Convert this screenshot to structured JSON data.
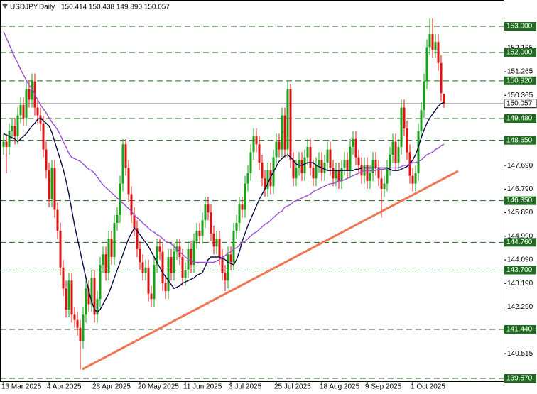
{
  "chart_data": {
    "type": "candlestick",
    "title": "USDJPY,Daily",
    "subtitle": "150.414 150.438 149.890 150.057",
    "xlim": [
      -1.25,
      176
    ],
    "ylim": [
      139.462,
      154.002
    ],
    "xticks": [
      {
        "value": 0,
        "label": "13 Mar 2025"
      },
      {
        "value": 16,
        "label": "4 Apr 2025"
      },
      {
        "value": 32,
        "label": "28 Apr 2025"
      },
      {
        "value": 48,
        "label": "20 May 2025"
      },
      {
        "value": 64,
        "label": "11 Jun 2025"
      },
      {
        "value": 80,
        "label": "3 Jul 2025"
      },
      {
        "value": 96,
        "label": "25 Jul 2025"
      },
      {
        "value": 112,
        "label": "18 Aug 2025"
      },
      {
        "value": 128,
        "label": "9 Sep 2025"
      },
      {
        "value": 144,
        "label": "1 Oct 2025"
      }
    ],
    "yticks": [
      152.165,
      151.265,
      150.365,
      {
        "value": 147.69,
        "label": "147.690"
      },
      {
        "value": 146.79,
        "label": "146.790"
      },
      {
        "value": 145.89,
        "label": "145.890"
      },
      {
        "value": 144.99,
        "label": "144.990"
      },
      {
        "value": 144.09,
        "label": "144.090"
      },
      {
        "value": 143.19,
        "label": "143.190"
      },
      {
        "value": 142.29,
        "label": "142.290"
      },
      140.515
    ],
    "levels": [
      {
        "value": 153,
        "label": "153.000"
      },
      {
        "value": 152,
        "label": "152.000"
      },
      {
        "value": 150.92,
        "label": "150.920"
      },
      {
        "value": 149.48,
        "label": "149.480"
      },
      {
        "value": 148.65,
        "label": "148.650"
      },
      {
        "value": 146.35,
        "label": "146.350"
      },
      {
        "value": 144.76,
        "label": "144.760"
      },
      {
        "value": 143.7,
        "label": "143.700"
      },
      {
        "value": 141.44,
        "label": "141.440"
      },
      {
        "value": 139.57,
        "label": "139.570"
      }
    ],
    "level_color": "#1f6b1f",
    "up_color": "#16a316",
    "down_color": "#e01010",
    "candles": {
      "open": [
        148.4,
        148.6,
        148.4,
        149,
        149.2,
        148.8,
        149.6,
        150,
        149.5,
        150.6,
        150.2,
        150.9,
        149.9,
        149.6,
        149.3,
        148.3,
        147.5,
        146.4,
        147.6,
        146,
        145.2,
        143.8,
        143,
        142.2,
        143.3,
        142,
        141.8,
        141.5,
        141,
        142,
        143,
        142.4,
        143.4,
        142,
        142.6,
        143.9,
        144.3,
        143.6,
        144.9,
        144.2,
        145.5,
        145.8,
        147,
        148.5,
        147.6,
        146.6,
        145.8,
        145.3,
        144.5,
        144,
        143.6,
        143.8,
        142.8,
        142.6,
        143.9,
        144.6,
        144.4,
        143.2,
        142.9,
        144.2,
        143.6,
        144.4,
        144.6,
        144.2,
        143.4,
        143.7,
        144.5,
        143.9,
        144.8,
        145.2,
        145,
        145.6,
        146.2,
        145.9,
        145.1,
        144.6,
        144.9,
        144.2,
        143.6,
        143.3,
        144.3,
        144,
        145.2,
        145.5,
        146.2,
        146,
        147,
        147.4,
        148.2,
        148.8,
        148.5,
        147.8,
        147.2,
        146.8,
        147.5,
        146.9,
        148,
        148.6,
        148.3,
        149.6,
        148.3,
        150.6,
        147.9,
        147.2,
        147.6,
        147.9,
        147.4,
        148,
        148.4,
        147.6,
        147.2,
        147.7,
        147.9,
        147.4,
        147.8,
        148.3,
        147.6,
        147.2,
        147.5,
        147.1,
        147.6,
        147.9,
        147.5,
        148.4,
        148.7,
        148,
        147.7,
        147.3,
        147.7,
        147.1,
        147.4,
        147.9,
        147.6,
        147.2,
        146.8,
        147,
        147.6,
        148.1,
        148.6,
        147.8,
        148.4,
        149.9,
        149.1,
        148.2,
        147.3,
        147,
        147.4,
        149,
        149.8,
        150.9,
        152.2,
        152.7,
        152.1,
        152.4,
        151.6,
        150.414
      ],
      "high": [
        148.9,
        148.9,
        149.3,
        149.5,
        149.5,
        149.9,
        150.3,
        150.3,
        150.9,
        150.9,
        151.2,
        151.2,
        150.2,
        149.9,
        149.6,
        148.6,
        147.8,
        147.9,
        147.9,
        146.3,
        145.5,
        144.1,
        143.3,
        143.6,
        143.6,
        142.3,
        142.1,
        141.8,
        142.3,
        143.3,
        143.3,
        143.7,
        143.7,
        142.9,
        144.2,
        144.6,
        144.6,
        145.2,
        145.2,
        145.8,
        146.1,
        147.3,
        148.7,
        148.7,
        147.9,
        146.9,
        146.1,
        145.6,
        144.8,
        144.3,
        144.1,
        144.1,
        143.1,
        144.2,
        144.9,
        144.9,
        144.7,
        143.5,
        144.5,
        144.5,
        144.7,
        144.9,
        144.9,
        144.5,
        144,
        144.8,
        144.8,
        145.1,
        145.5,
        145.5,
        145.9,
        146.5,
        146.5,
        146.2,
        145.4,
        145.2,
        145.2,
        144.5,
        143.9,
        144.6,
        144.6,
        145.5,
        145.8,
        146.5,
        146.5,
        147.3,
        147.7,
        148.5,
        149.1,
        149.1,
        148.8,
        148.1,
        147.5,
        147.8,
        147.8,
        148.3,
        148.9,
        148.9,
        149.9,
        149.9,
        150.9,
        150.8,
        148.2,
        147.9,
        148.2,
        148.2,
        148.3,
        148.7,
        148.7,
        147.9,
        148,
        148.2,
        148.2,
        148.1,
        148.6,
        148.6,
        147.9,
        147.8,
        147.8,
        147.9,
        148.2,
        148.2,
        148.7,
        149,
        149,
        148.3,
        148,
        148,
        148,
        147.7,
        148.2,
        148.2,
        147.9,
        147.5,
        147.3,
        147.9,
        148.4,
        148.9,
        148.9,
        148.7,
        150.2,
        150.2,
        149.4,
        148.5,
        147.6,
        147.7,
        149.3,
        150.1,
        151.2,
        152.5,
        153.3,
        153.3,
        152.7,
        152.7,
        151.9,
        150.438
      ],
      "low": [
        148.1,
        147.4,
        148.1,
        148.7,
        148.5,
        148.5,
        149.3,
        149.2,
        149.2,
        149.9,
        149.9,
        149.6,
        149.3,
        149,
        148,
        147.2,
        146.1,
        146.1,
        145.7,
        144.9,
        143.5,
        142.7,
        141.9,
        141.9,
        141.7,
        141.5,
        141.2,
        139.9,
        140.7,
        141.7,
        142.1,
        142.1,
        141.7,
        141.7,
        142.3,
        143.6,
        143.3,
        143.3,
        143.9,
        143.9,
        145.2,
        145.5,
        146.7,
        147.3,
        146.3,
        145.5,
        145,
        144.2,
        143.7,
        143.3,
        143.3,
        142.5,
        142.3,
        142.3,
        143.6,
        144.1,
        142.9,
        142.6,
        142.6,
        143.3,
        143.3,
        144.1,
        143.9,
        143.1,
        143.1,
        143.4,
        143.6,
        143.6,
        144.5,
        144.7,
        144.7,
        145.3,
        145.6,
        144.8,
        144.3,
        144.3,
        143.9,
        143.3,
        142.9,
        143,
        143.7,
        143.7,
        144.9,
        145.2,
        145.7,
        145.7,
        146.7,
        147.1,
        147.9,
        148.2,
        147.5,
        146.9,
        146.5,
        146.5,
        146.6,
        146.6,
        147.7,
        148,
        148,
        148,
        148,
        147.6,
        146.9,
        146.9,
        147.3,
        147.1,
        147.1,
        147.7,
        147.3,
        146.9,
        146.9,
        147.4,
        147.1,
        147.1,
        147.5,
        147.3,
        146.9,
        146.9,
        146.8,
        146.8,
        147.3,
        147.2,
        147.2,
        148.1,
        147.7,
        147.4,
        147,
        147,
        146.8,
        146.8,
        147.1,
        147.3,
        146.9,
        145.7,
        146.5,
        146.7,
        147.3,
        147.8,
        147.5,
        147.5,
        148.1,
        148.8,
        147.9,
        147,
        146.7,
        146.7,
        147.1,
        148.7,
        149.5,
        150.6,
        151.9,
        151.8,
        151.8,
        151.3,
        150.15,
        149.89
      ],
      "close": [
        148.6,
        148.4,
        149,
        149.2,
        148.8,
        149.6,
        150,
        149.5,
        150.6,
        150.2,
        150.9,
        149.9,
        149.6,
        149.3,
        148.3,
        147.5,
        146.4,
        147.6,
        146,
        145.2,
        143.8,
        143,
        142.2,
        143.3,
        142,
        141.8,
        141.5,
        141,
        142,
        143,
        142.4,
        143.4,
        142,
        142.6,
        143.9,
        144.3,
        143.6,
        144.9,
        144.2,
        145.5,
        145.8,
        147,
        148.5,
        147.6,
        146.6,
        145.8,
        145.3,
        144.5,
        144,
        143.6,
        143.8,
        142.8,
        142.6,
        143.9,
        144.6,
        144.4,
        143.2,
        142.9,
        144.2,
        143.6,
        144.4,
        144.6,
        144.2,
        143.4,
        143.7,
        144.5,
        143.9,
        144.8,
        145.2,
        145,
        145.6,
        146.2,
        145.9,
        145.1,
        144.6,
        144.9,
        144.2,
        143.6,
        143.3,
        144.3,
        144,
        145.2,
        145.5,
        146.2,
        146,
        147,
        147.4,
        148.2,
        148.8,
        148.5,
        147.8,
        147.2,
        146.8,
        147.5,
        146.9,
        148,
        148.6,
        148.3,
        149.6,
        148.3,
        150.6,
        147.9,
        147.2,
        147.6,
        147.9,
        147.4,
        148,
        148.4,
        147.6,
        147.2,
        147.7,
        147.9,
        147.4,
        147.8,
        148.3,
        147.6,
        147.2,
        147.5,
        147.1,
        147.6,
        147.9,
        147.5,
        148.4,
        148.7,
        148,
        147.7,
        147.3,
        147.7,
        147.1,
        147.4,
        147.9,
        147.6,
        147.2,
        146.8,
        147,
        147.6,
        148.1,
        148.6,
        147.8,
        148.4,
        149.9,
        149.1,
        148.2,
        147.3,
        147,
        147.4,
        149,
        149.8,
        150.9,
        152.2,
        152.7,
        152.1,
        152.4,
        151.6,
        150.45,
        150.057
      ]
    },
    "lines": [
      {
        "color": "#0b0b4a",
        "values": [
          148.9,
          148.85,
          148.8,
          148.75,
          148.7,
          148.6,
          148.7,
          148.8,
          148.9,
          149.05,
          149.2,
          149.3,
          149.45,
          149.5,
          149.4,
          149.3,
          149.2,
          148.95,
          148.6,
          148.25,
          147.9,
          147.55,
          147.1,
          146.6,
          146,
          145.4,
          144.9,
          144.4,
          143.9,
          143.4,
          142.9,
          142.5,
          142.2,
          142.1,
          142.2,
          142.4,
          142.6,
          142.8,
          143.1,
          143.4,
          143.7,
          144,
          144.3,
          144.6,
          144.9,
          145.1,
          145.3,
          145.2,
          145.05,
          144.9,
          144.75,
          144.6,
          144.4,
          144.2,
          144,
          143.8,
          143.6,
          143.45,
          143.3,
          143.15,
          143,
          143.05,
          143.1,
          143.2,
          143.25,
          143.3,
          143.35,
          143.4,
          143.5,
          143.55,
          143.6,
          143.85,
          144.1,
          144.2,
          144.2,
          144.2,
          144.2,
          144.15,
          144.1,
          144,
          143.95,
          143.9,
          144.1,
          144.4,
          144.8,
          145.1,
          145.4,
          145.65,
          145.9,
          146.15,
          146.4,
          146.6,
          146.8,
          147,
          147.25,
          147.45,
          147.65,
          147.85,
          147.95,
          148.05,
          148.1,
          148,
          147.9,
          147.75,
          147.7,
          147.7,
          147.75,
          147.8,
          147.8,
          147.8,
          147.7,
          147.65,
          147.6,
          147.55,
          147.5,
          147.5,
          147.5,
          147.5,
          147.5,
          147.5,
          147.5,
          147.5,
          147.5,
          147.5,
          147.55,
          147.55,
          147.6,
          147.6,
          147.6,
          147.6,
          147.6,
          147.6,
          147.6,
          147.6,
          147.6,
          147.6,
          147.55,
          147.5,
          147.5,
          147.5,
          147.55,
          147.6,
          147.65,
          147.75,
          147.9,
          148.1,
          148.4,
          148.75,
          149.05,
          149.3,
          149.5,
          149.65,
          149.8,
          149.95,
          150.05,
          150.1
        ]
      },
      {
        "color": "#9a4fd4",
        "values": [
          152.8,
          152.55,
          152.3,
          152.05,
          151.8,
          151.6,
          151.35,
          151.15,
          150.95,
          150.75,
          150.6,
          150.4,
          150.2,
          150,
          149.85,
          149.7,
          149.5,
          149.35,
          149.2,
          149.05,
          148.85,
          148.6,
          148.4,
          148.15,
          148,
          147.95,
          147.9,
          147.85,
          147.75,
          147.65,
          147.55,
          147.5,
          147.4,
          147.25,
          147.1,
          146.95,
          146.85,
          146.75,
          146.65,
          146.55,
          146.45,
          146.35,
          146.25,
          146.15,
          146.05,
          145.95,
          145.8,
          145.7,
          145.6,
          145.5,
          145.4,
          145.3,
          145.2,
          145.15,
          145.05,
          145,
          144.9,
          144.8,
          144.75,
          144.7,
          144.6,
          144.5,
          144.4,
          144.3,
          144.2,
          144.1,
          144.05,
          144,
          144,
          144,
          144,
          144,
          144,
          144,
          144,
          144.05,
          144.1,
          144.2,
          144.25,
          144.35,
          144.4,
          144.5,
          144.55,
          144.65,
          144.75,
          144.8,
          144.9,
          145,
          145.1,
          145.15,
          145.25,
          145.35,
          145.45,
          145.5,
          145.6,
          145.7,
          145.8,
          145.9,
          145.95,
          146.1,
          146.15,
          146.2,
          146.3,
          146.35,
          146.4,
          146.45,
          146.5,
          146.55,
          146.6,
          146.7,
          146.75,
          146.8,
          146.85,
          146.9,
          146.95,
          147,
          147,
          147.05,
          147.1,
          147.1,
          147.15,
          147.2,
          147.25,
          147.3,
          147.35,
          147.4,
          147.45,
          147.5,
          147.5,
          147.5,
          147.5,
          147.5,
          147.55,
          147.55,
          147.55,
          147.6,
          147.6,
          147.6,
          147.6,
          147.6,
          147.65,
          147.7,
          147.7,
          147.75,
          147.8,
          147.8,
          147.85,
          147.9,
          148,
          148.1,
          148.15,
          148.2,
          148.3,
          148.35,
          148.45,
          148.5
        ]
      }
    ],
    "trendline": {
      "color": "#f07552",
      "x": [
        27.75,
        160
      ],
      "y": [
        139.92,
        147.48
      ]
    }
  }
}
